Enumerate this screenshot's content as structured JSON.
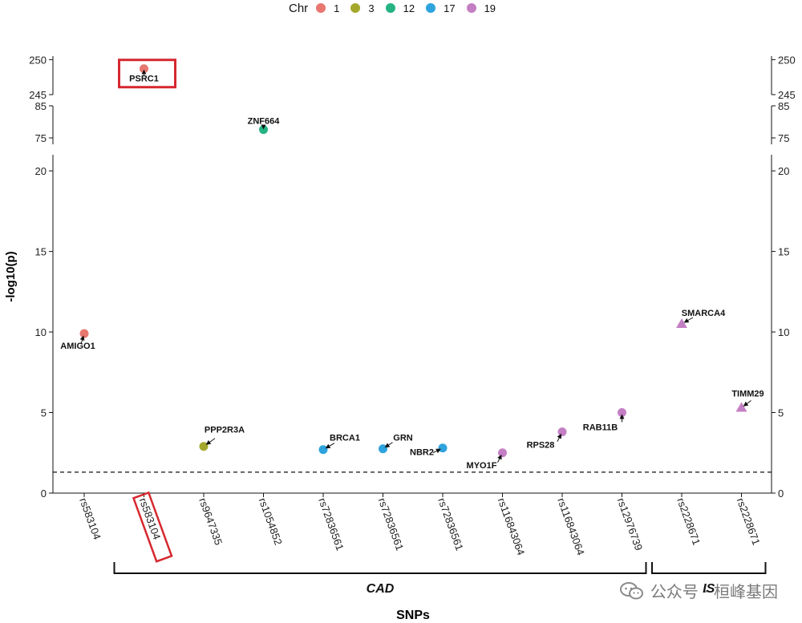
{
  "legend": {
    "title": "Chr",
    "items": [
      {
        "label": "1",
        "color": "#E8776F"
      },
      {
        "label": "3",
        "color": "#A3A82C"
      },
      {
        "label": "12",
        "color": "#25B383"
      },
      {
        "label": "17",
        "color": "#2FA3DD"
      },
      {
        "label": "19",
        "color": "#C47FC4"
      }
    ]
  },
  "watermark": {
    "text": "公众号 · 桓峰基因",
    "icon": "wechat-icon"
  },
  "chart_data": {
    "type": "scatter",
    "xlabel": "SNPs",
    "ylabel": "-log10(p)",
    "categories": [
      "rs583104",
      "rs583104",
      "rs9647335",
      "rs1054852",
      "rs72836561",
      "rs72836561",
      "rs72836561",
      "rs116843064",
      "rs116843064",
      "rs12976739",
      "rs2228671",
      "rs2228671"
    ],
    "highlight_category_index": 1,
    "threshold": 1.3,
    "y_segments": [
      {
        "range": [
          0,
          21
        ],
        "ticks": [
          0,
          5,
          10,
          15,
          20
        ]
      },
      {
        "range": [
          73,
          85
        ],
        "ticks": [
          75,
          85
        ]
      },
      {
        "range": [
          245,
          250.5
        ],
        "ticks": [
          245,
          250
        ]
      }
    ],
    "points": [
      {
        "x": 0,
        "y": 9.9,
        "gene": "AMIGO1",
        "chr": "1",
        "shape": "circle"
      },
      {
        "x": 1,
        "y": 248.7,
        "gene": "PSRC1",
        "chr": "1",
        "shape": "circle",
        "highlight": true
      },
      {
        "x": 2,
        "y": 2.9,
        "gene": "PPP2R3A",
        "chr": "3",
        "shape": "circle"
      },
      {
        "x": 3,
        "y": 77.6,
        "gene": "ZNF664",
        "chr": "12",
        "shape": "circle"
      },
      {
        "x": 4,
        "y": 2.7,
        "gene": "BRCA1",
        "chr": "17",
        "shape": "circle"
      },
      {
        "x": 5,
        "y": 2.75,
        "gene": "GRN",
        "chr": "17",
        "shape": "circle"
      },
      {
        "x": 6,
        "y": 2.8,
        "gene": "NBR2",
        "chr": "17",
        "shape": "circle"
      },
      {
        "x": 7,
        "y": 2.5,
        "gene": "MYO1F",
        "chr": "19",
        "shape": "circle"
      },
      {
        "x": 8,
        "y": 3.8,
        "gene": "RPS28",
        "chr": "19",
        "shape": "circle"
      },
      {
        "x": 9,
        "y": 5.0,
        "gene": "RAB11B",
        "chr": "19",
        "shape": "circle"
      },
      {
        "x": 10,
        "y": 10.5,
        "gene": "SMARCA4",
        "chr": "19",
        "shape": "triangle"
      },
      {
        "x": 11,
        "y": 5.3,
        "gene": "TIMM29",
        "chr": "19",
        "shape": "triangle"
      }
    ],
    "groups": [
      {
        "label": "CAD",
        "from": 1,
        "to": 9
      },
      {
        "label": "IS",
        "from": 10,
        "to": 11
      }
    ]
  }
}
